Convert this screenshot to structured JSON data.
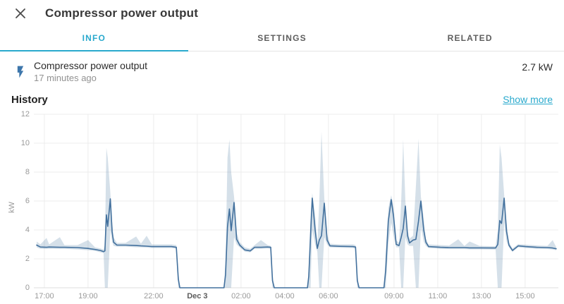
{
  "colors": {
    "accent": "#29a9cd",
    "line": "#42709d",
    "band": "rgba(66, 112, 157, 0.22)",
    "grid": "#ececec",
    "axis_line": "#dedede",
    "icon_blue": "#3d76ab",
    "close_icon": "#4a4a4a"
  },
  "header": {
    "title": "Compressor power output"
  },
  "tabs": [
    {
      "label": "INFO",
      "active": true
    },
    {
      "label": "SETTINGS",
      "active": false
    },
    {
      "label": "RELATED",
      "active": false
    }
  ],
  "entity": {
    "name": "Compressor power output",
    "last_changed": "17 minutes ago",
    "value": "2.7 kW",
    "icon": "flash-icon"
  },
  "history": {
    "title": "History",
    "show_more": "Show more"
  },
  "chart_data": {
    "type": "line",
    "title": "History",
    "ylabel": "kW",
    "ylim": [
      0,
      12
    ],
    "y_ticks": [
      0,
      2,
      4,
      6,
      8,
      10,
      12
    ],
    "x_span_hours": 24,
    "x_start_clock": "16:31",
    "grid": true,
    "legend": false,
    "x_ticks": [
      {
        "t": 0.48,
        "label": "17:00",
        "bold": false
      },
      {
        "t": 2.48,
        "label": "19:00",
        "bold": false
      },
      {
        "t": 5.48,
        "label": "22:00",
        "bold": false
      },
      {
        "t": 7.48,
        "label": "Dec 3",
        "bold": true
      },
      {
        "t": 9.48,
        "label": "02:00",
        "bold": false
      },
      {
        "t": 11.48,
        "label": "04:00",
        "bold": false
      },
      {
        "t": 13.48,
        "label": "06:00",
        "bold": false
      },
      {
        "t": 16.48,
        "label": "09:00",
        "bold": false
      },
      {
        "t": 18.48,
        "label": "11:00",
        "bold": false
      },
      {
        "t": 20.48,
        "label": "13:00",
        "bold": false
      },
      {
        "t": 22.48,
        "label": "15:00",
        "bold": false
      }
    ],
    "series": [
      {
        "name": "Compressor power output",
        "unit": "kW",
        "points_format": "[hours_from_left_edge, value_kW, band_min_kW, band_max_kW]",
        "points": [
          [
            0.13,
            2.95,
            2.8,
            3.2
          ],
          [
            0.3,
            2.82,
            2.7,
            3.0
          ],
          [
            0.58,
            2.8,
            2.7,
            3.45
          ],
          [
            0.7,
            2.82,
            2.7,
            3.0
          ],
          [
            1.19,
            2.8,
            2.7,
            3.5
          ],
          [
            1.4,
            2.8,
            2.7,
            2.95
          ],
          [
            2.0,
            2.78,
            2.65,
            2.95
          ],
          [
            2.48,
            2.72,
            2.6,
            3.3
          ],
          [
            2.8,
            2.65,
            2.55,
            2.8
          ],
          [
            3.05,
            2.58,
            2.45,
            2.72
          ],
          [
            3.19,
            2.5,
            2.4,
            2.65
          ],
          [
            3.25,
            2.55,
            0.0,
            3.0
          ],
          [
            3.32,
            5.05,
            0.0,
            9.7
          ],
          [
            3.38,
            4.25,
            0.0,
            9.0
          ],
          [
            3.5,
            6.15,
            4.0,
            6.6
          ],
          [
            3.58,
            3.9,
            3.2,
            4.6
          ],
          [
            3.65,
            3.15,
            2.9,
            3.5
          ],
          [
            3.8,
            2.95,
            2.85,
            3.1
          ],
          [
            4.2,
            2.95,
            2.85,
            3.1
          ],
          [
            4.68,
            2.92,
            2.8,
            3.55
          ],
          [
            4.9,
            2.9,
            2.8,
            3.05
          ],
          [
            5.16,
            2.88,
            2.78,
            3.6
          ],
          [
            5.4,
            2.85,
            2.75,
            3.0
          ],
          [
            6.3,
            2.85,
            2.75,
            3.0
          ],
          [
            6.52,
            2.8,
            2.7,
            2.95
          ],
          [
            6.61,
            0.6,
            0.0,
            1.2
          ],
          [
            6.68,
            0.0,
            0.0,
            0.0
          ],
          [
            8.7,
            0.0,
            0.0,
            0.0
          ],
          [
            8.77,
            0.9,
            0.0,
            2.0
          ],
          [
            8.86,
            4.2,
            0.0,
            9.0
          ],
          [
            8.95,
            5.45,
            0.0,
            10.25
          ],
          [
            9.03,
            3.95,
            0.0,
            8.0
          ],
          [
            9.16,
            5.9,
            3.5,
            6.3
          ],
          [
            9.28,
            3.35,
            3.0,
            3.8
          ],
          [
            9.42,
            2.95,
            2.8,
            3.15
          ],
          [
            9.65,
            2.62,
            2.5,
            2.8
          ],
          [
            9.9,
            2.55,
            2.45,
            2.7
          ],
          [
            10.1,
            2.8,
            2.7,
            2.95
          ],
          [
            10.39,
            2.8,
            2.7,
            3.3
          ],
          [
            10.7,
            2.82,
            2.72,
            2.95
          ],
          [
            10.84,
            2.8,
            2.7,
            2.9
          ],
          [
            10.92,
            0.5,
            0.0,
            1.0
          ],
          [
            11.0,
            0.0,
            0.0,
            0.0
          ],
          [
            12.52,
            0.0,
            0.0,
            0.0
          ],
          [
            12.58,
            0.8,
            0.0,
            1.5
          ],
          [
            12.66,
            3.6,
            0.0,
            5.0
          ],
          [
            12.74,
            6.2,
            4.0,
            6.55
          ],
          [
            12.87,
            4.0,
            3.0,
            5.0
          ],
          [
            12.97,
            2.72,
            2.5,
            3.0
          ],
          [
            13.06,
            3.3,
            0.0,
            6.0
          ],
          [
            13.16,
            3.6,
            0.0,
            10.8
          ],
          [
            13.29,
            5.85,
            3.5,
            6.2
          ],
          [
            13.42,
            3.3,
            3.0,
            3.7
          ],
          [
            13.55,
            2.9,
            2.8,
            3.05
          ],
          [
            14.0,
            2.87,
            2.77,
            3.0
          ],
          [
            14.6,
            2.85,
            2.75,
            3.0
          ],
          [
            14.72,
            2.82,
            2.7,
            2.95
          ],
          [
            14.8,
            0.5,
            0.0,
            1.0
          ],
          [
            14.88,
            0.0,
            0.0,
            0.0
          ],
          [
            16.02,
            0.0,
            0.0,
            0.0
          ],
          [
            16.1,
            1.2,
            0.0,
            2.5
          ],
          [
            16.22,
            4.6,
            3.0,
            5.5
          ],
          [
            16.35,
            6.1,
            4.5,
            6.4
          ],
          [
            16.46,
            4.9,
            3.6,
            5.6
          ],
          [
            16.58,
            3.0,
            2.8,
            3.3
          ],
          [
            16.71,
            2.92,
            2.8,
            3.1
          ],
          [
            16.81,
            3.5,
            0.0,
            6.0
          ],
          [
            16.9,
            4.1,
            0.0,
            10.25
          ],
          [
            17.0,
            5.65,
            3.5,
            6.0
          ],
          [
            17.1,
            3.6,
            3.0,
            4.0
          ],
          [
            17.19,
            3.1,
            2.9,
            3.4
          ],
          [
            17.35,
            3.3,
            2.9,
            3.6
          ],
          [
            17.48,
            3.35,
            0.0,
            7.0
          ],
          [
            17.6,
            4.6,
            0.0,
            10.3
          ],
          [
            17.71,
            6.0,
            4.2,
            6.3
          ],
          [
            17.84,
            4.0,
            3.2,
            4.8
          ],
          [
            17.94,
            3.15,
            2.9,
            3.4
          ],
          [
            18.06,
            2.85,
            2.75,
            3.0
          ],
          [
            18.6,
            2.8,
            2.7,
            2.95
          ],
          [
            19.0,
            2.78,
            2.68,
            2.92
          ],
          [
            19.42,
            2.78,
            2.68,
            3.35
          ],
          [
            19.7,
            2.78,
            2.68,
            2.9
          ],
          [
            19.94,
            2.76,
            2.66,
            3.2
          ],
          [
            20.4,
            2.76,
            2.66,
            2.9
          ],
          [
            21.0,
            2.75,
            2.65,
            2.88
          ],
          [
            21.13,
            2.75,
            2.65,
            2.88
          ],
          [
            21.23,
            3.0,
            0.0,
            4.0
          ],
          [
            21.32,
            4.65,
            0.0,
            9.9
          ],
          [
            21.4,
            4.45,
            0.0,
            9.0
          ],
          [
            21.52,
            6.2,
            4.5,
            6.45
          ],
          [
            21.63,
            3.9,
            3.2,
            4.5
          ],
          [
            21.74,
            2.95,
            2.8,
            3.15
          ],
          [
            21.9,
            2.58,
            2.48,
            2.72
          ],
          [
            22.16,
            2.9,
            2.8,
            3.02
          ],
          [
            22.5,
            2.85,
            2.75,
            2.98
          ],
          [
            23.0,
            2.8,
            2.7,
            2.93
          ],
          [
            23.5,
            2.78,
            2.68,
            2.9
          ],
          [
            23.74,
            2.75,
            2.65,
            3.3
          ],
          [
            23.9,
            2.7,
            2.6,
            2.82
          ]
        ]
      }
    ]
  }
}
